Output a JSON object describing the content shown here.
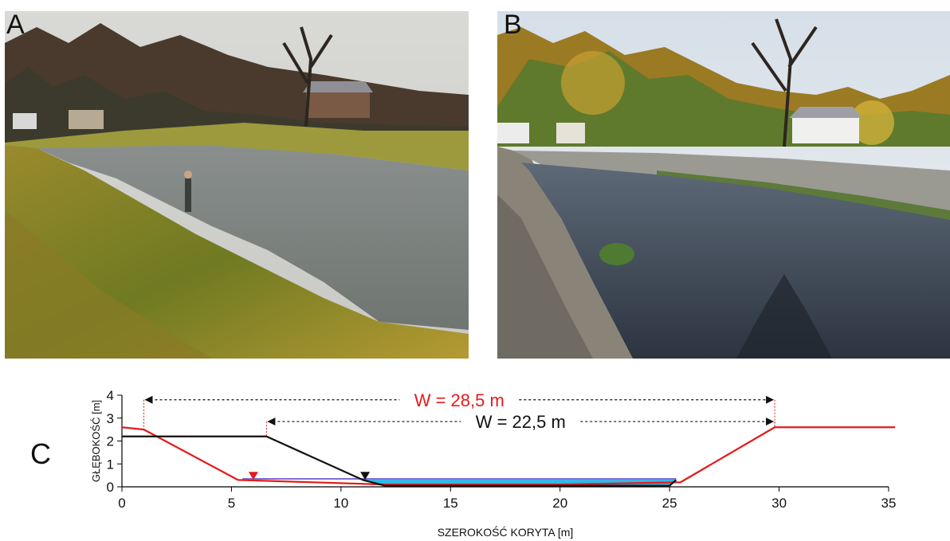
{
  "panels": {
    "a": "A",
    "b": "B",
    "c": "C"
  },
  "photo_a_icon": "river-bank-photo-icon",
  "photo_b_icon": "river-channel-photo-icon",
  "chart_data": {
    "type": "line",
    "xlabel": "SZEROKOŚĆ KORYTA [m]",
    "ylabel": "GŁĘBOKOŚĆ [m]",
    "xlim": [
      0,
      35
    ],
    "ylim": [
      0,
      4
    ],
    "xticks": [
      0,
      5,
      10,
      15,
      20,
      25,
      30,
      35
    ],
    "yticks": [
      0,
      1,
      2,
      3,
      4
    ],
    "colors": {
      "red": "#e41a1c",
      "black": "#111111",
      "water": "#33b8e6",
      "water_edge": "#7f6fd6"
    },
    "series": [
      {
        "name": "",
        "color": "#e41a1c",
        "x": [
          0,
          1,
          5.3,
          12,
          20,
          25.5,
          29.8,
          35.3
        ],
        "y": [
          2.6,
          2.5,
          0.3,
          0.1,
          0.1,
          0.2,
          2.6,
          2.6
        ]
      },
      {
        "name": "",
        "color": "#111111",
        "x": [
          0,
          6.6,
          11,
          12,
          25,
          25.3
        ],
        "y": [
          2.2,
          2.2,
          0.3,
          0.05,
          0.05,
          0.3
        ]
      }
    ],
    "water_fill": {
      "x_from": 5.5,
      "x_to": 25.3,
      "surface": 0.35
    },
    "water_markers": [
      {
        "x": 6.0,
        "y": 0.48,
        "color": "#e41a1c"
      },
      {
        "x": 11.1,
        "y": 0.48,
        "color": "#111111"
      }
    ],
    "annotations": [
      {
        "text": "W = 28,5 m",
        "x_from": 1,
        "x_to": 29.8,
        "y": 3.8,
        "color": "#e41a1c"
      },
      {
        "text": "W = 22,5 m",
        "x_from": 6.6,
        "x_to": 29.8,
        "y": 2.85,
        "color": "#111111"
      }
    ]
  }
}
